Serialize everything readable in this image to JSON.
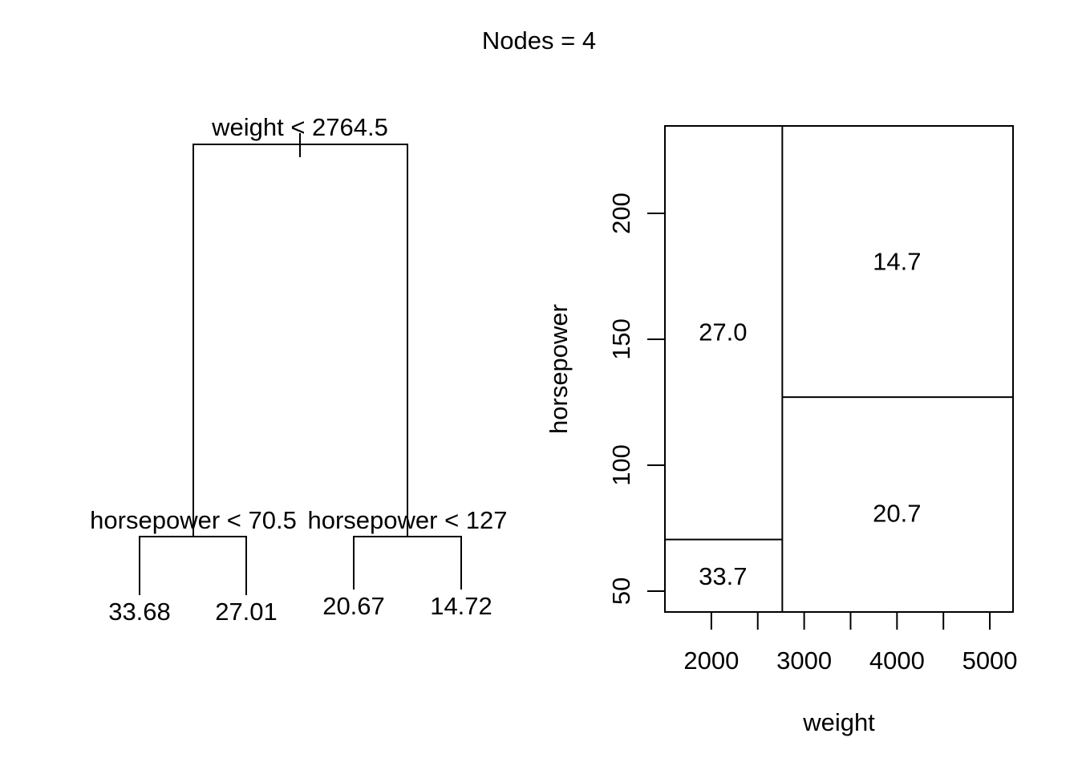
{
  "title": "Nodes = 4",
  "colors": {
    "line": "#000000",
    "background": "#ffffff"
  },
  "chart_data": [
    {
      "type": "tree",
      "root": {
        "split": "weight < 2764.5",
        "left": {
          "split": "horsepower < 70.5",
          "left": {
            "leaf": "33.68"
          },
          "right": {
            "leaf": "27.01"
          }
        },
        "right": {
          "split": "horsepower < 127",
          "left": {
            "leaf": "20.67"
          },
          "right": {
            "leaf": "14.72"
          }
        }
      }
    },
    {
      "type": "partition",
      "xlabel": "weight",
      "ylabel": "horsepower",
      "xlim": [
        1500,
        5250
      ],
      "ylim": [
        41.7,
        234.7
      ],
      "xticks": [
        2000,
        2500,
        3000,
        3500,
        4000,
        4500,
        5000
      ],
      "xtick_labels": [
        "2000",
        "",
        "3000",
        "",
        "4000",
        "",
        "5000"
      ],
      "yticks": [
        50,
        100,
        150,
        200
      ],
      "ytick_labels": [
        "50",
        "100",
        "150",
        "200"
      ],
      "splits": [
        {
          "var": "weight",
          "value": 2764.5,
          "region": "all"
        },
        {
          "var": "horsepower",
          "value": 70.5,
          "region": "weight < 2764.5"
        },
        {
          "var": "horsepower",
          "value": 127,
          "region": "weight >= 2764.5"
        }
      ],
      "regions": [
        {
          "label": "33.7",
          "x": 2125,
          "y": 56
        },
        {
          "label": "27.0",
          "x": 2125,
          "y": 153
        },
        {
          "label": "20.7",
          "x": 4000,
          "y": 81
        },
        {
          "label": "14.7",
          "x": 4000,
          "y": 181
        }
      ]
    }
  ]
}
